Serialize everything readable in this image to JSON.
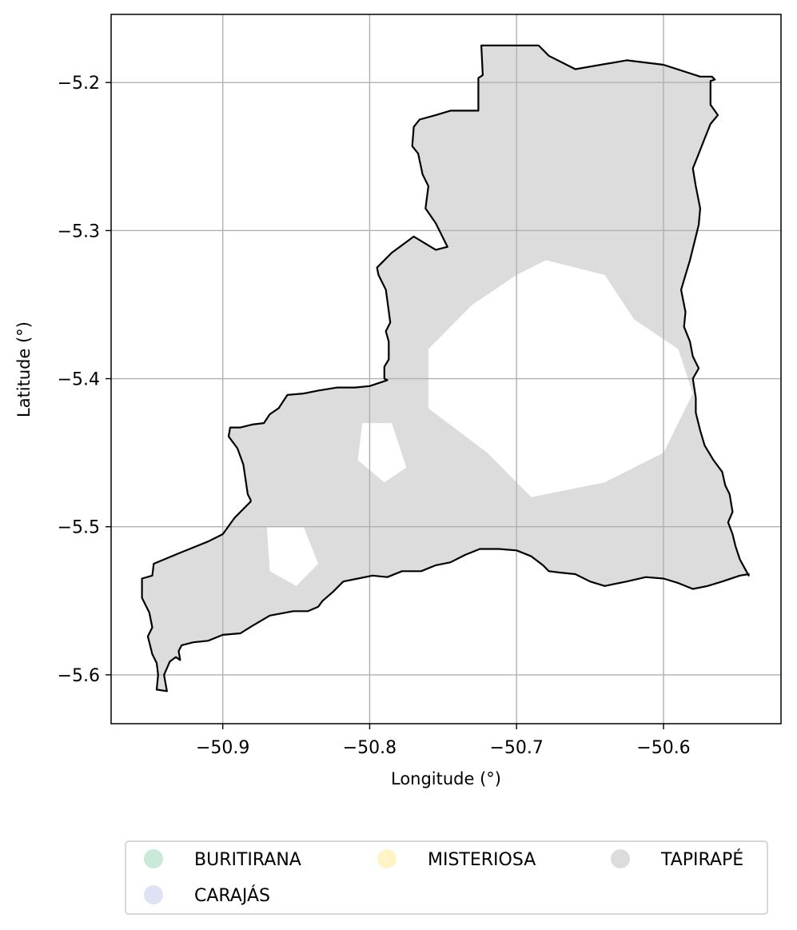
{
  "chart_data": {
    "type": "map",
    "xlabel": "Longitude (°)",
    "ylabel": "Latitude (°)",
    "xlim": [
      -50.976,
      -50.52
    ],
    "ylim": [
      -5.633,
      -5.154
    ],
    "xticks": [
      {
        "value": -50.9,
        "label": "−50.9"
      },
      {
        "value": -50.8,
        "label": "−50.8"
      },
      {
        "value": -50.7,
        "label": "−50.7"
      },
      {
        "value": -50.6,
        "label": "−50.6"
      }
    ],
    "yticks": [
      {
        "value": -5.2,
        "label": "−5.2"
      },
      {
        "value": -5.3,
        "label": "−5.3"
      },
      {
        "value": -5.4,
        "label": "−5.4"
      },
      {
        "value": -5.5,
        "label": "−5.5"
      },
      {
        "value": -5.6,
        "label": "−5.6"
      }
    ],
    "grid": true,
    "legend_placement": "bottom-center",
    "legend": [
      {
        "label": "BURITIRANA",
        "color": "#c9ead8"
      },
      {
        "label": "MISTERIOSA",
        "color": "#fff4c8"
      },
      {
        "label": "TAPIRAPÉ",
        "color": "#dcdcdc"
      },
      {
        "label": "CARAJÁS",
        "color": "#dde3f2"
      }
    ],
    "boundary": {
      "color": "#000000",
      "points": [
        [
          -50.945,
          -5.61
        ],
        [
          -50.938,
          -5.611
        ],
        [
          -50.94,
          -5.6
        ],
        [
          -50.936,
          -5.591
        ],
        [
          -50.932,
          -5.588
        ],
        [
          -50.929,
          -5.59
        ],
        [
          -50.93,
          -5.584
        ],
        [
          -50.928,
          -5.58
        ],
        [
          -50.92,
          -5.578
        ],
        [
          -50.91,
          -5.577
        ],
        [
          -50.9,
          -5.573
        ],
        [
          -50.888,
          -5.572
        ],
        [
          -50.88,
          -5.567
        ],
        [
          -50.868,
          -5.56
        ],
        [
          -50.852,
          -5.557
        ],
        [
          -50.842,
          -5.557
        ],
        [
          -50.835,
          -5.554
        ],
        [
          -50.832,
          -5.55
        ],
        [
          -50.825,
          -5.544
        ],
        [
          -50.818,
          -5.537
        ],
        [
          -50.808,
          -5.535
        ],
        [
          -50.798,
          -5.533
        ],
        [
          -50.788,
          -5.534
        ],
        [
          -50.778,
          -5.53
        ],
        [
          -50.765,
          -5.53
        ],
        [
          -50.755,
          -5.526
        ],
        [
          -50.745,
          -5.524
        ],
        [
          -50.735,
          -5.519
        ],
        [
          -50.725,
          -5.515
        ],
        [
          -50.712,
          -5.515
        ],
        [
          -50.7,
          -5.516
        ],
        [
          -50.69,
          -5.52
        ],
        [
          -50.682,
          -5.526
        ],
        [
          -50.678,
          -5.53
        ],
        [
          -50.67,
          -5.531
        ],
        [
          -50.66,
          -5.532
        ],
        [
          -50.65,
          -5.537
        ],
        [
          -50.64,
          -5.54
        ],
        [
          -50.625,
          -5.537
        ],
        [
          -50.612,
          -5.534
        ],
        [
          -50.6,
          -5.535
        ],
        [
          -50.59,
          -5.538
        ],
        [
          -50.58,
          -5.542
        ],
        [
          -50.57,
          -5.54
        ],
        [
          -50.56,
          -5.537
        ],
        [
          -50.548,
          -5.533
        ],
        [
          -50.542,
          -5.532
        ],
        [
          -50.542,
          -5.533
        ],
        [
          -50.548,
          -5.522
        ],
        [
          -50.551,
          -5.513
        ],
        [
          -50.553,
          -5.505
        ],
        [
          -50.556,
          -5.497
        ],
        [
          -50.553,
          -5.49
        ],
        [
          -50.555,
          -5.478
        ],
        [
          -50.558,
          -5.472
        ],
        [
          -50.56,
          -5.463
        ],
        [
          -50.566,
          -5.455
        ],
        [
          -50.572,
          -5.445
        ],
        [
          -50.575,
          -5.435
        ],
        [
          -50.578,
          -5.423
        ],
        [
          -50.578,
          -5.413
        ],
        [
          -50.58,
          -5.4
        ],
        [
          -50.576,
          -5.393
        ],
        [
          -50.58,
          -5.385
        ],
        [
          -50.582,
          -5.375
        ],
        [
          -50.586,
          -5.365
        ],
        [
          -50.585,
          -5.355
        ],
        [
          -50.588,
          -5.34
        ],
        [
          -50.585,
          -5.33
        ],
        [
          -50.582,
          -5.32
        ],
        [
          -50.579,
          -5.308
        ],
        [
          -50.576,
          -5.296
        ],
        [
          -50.575,
          -5.285
        ],
        [
          -50.578,
          -5.27
        ],
        [
          -50.58,
          -5.258
        ],
        [
          -50.576,
          -5.248
        ],
        [
          -50.572,
          -5.238
        ],
        [
          -50.568,
          -5.228
        ],
        [
          -50.563,
          -5.222
        ],
        [
          -50.568,
          -5.215
        ],
        [
          -50.568,
          -5.205
        ],
        [
          -50.568,
          -5.199
        ],
        [
          -50.565,
          -5.198
        ],
        [
          -50.567,
          -5.196
        ],
        [
          -50.575,
          -5.196
        ],
        [
          -50.6,
          -5.188
        ],
        [
          -50.625,
          -5.185
        ],
        [
          -50.66,
          -5.191
        ],
        [
          -50.678,
          -5.182
        ],
        [
          -50.685,
          -5.175
        ],
        [
          -50.72,
          -5.175
        ],
        [
          -50.724,
          -5.175
        ],
        [
          -50.723,
          -5.195
        ],
        [
          -50.726,
          -5.197
        ],
        [
          -50.726,
          -5.219
        ],
        [
          -50.745,
          -5.219
        ],
        [
          -50.755,
          -5.222
        ],
        [
          -50.766,
          -5.225
        ],
        [
          -50.77,
          -5.23
        ],
        [
          -50.771,
          -5.243
        ],
        [
          -50.767,
          -5.248
        ],
        [
          -50.764,
          -5.262
        ],
        [
          -50.76,
          -5.27
        ],
        [
          -50.762,
          -5.285
        ],
        [
          -50.755,
          -5.295
        ],
        [
          -50.75,
          -5.305
        ],
        [
          -50.747,
          -5.311
        ],
        [
          -50.755,
          -5.313
        ],
        [
          -50.77,
          -5.304
        ],
        [
          -50.785,
          -5.315
        ],
        [
          -50.795,
          -5.325
        ],
        [
          -50.794,
          -5.33
        ],
        [
          -50.789,
          -5.34
        ],
        [
          -50.786,
          -5.362
        ],
        [
          -50.789,
          -5.368
        ],
        [
          -50.787,
          -5.375
        ],
        [
          -50.787,
          -5.387
        ],
        [
          -50.79,
          -5.392
        ],
        [
          -50.79,
          -5.4
        ],
        [
          -50.788,
          -5.401
        ],
        [
          -50.8,
          -5.405
        ],
        [
          -50.81,
          -5.406
        ],
        [
          -50.822,
          -5.406
        ],
        [
          -50.835,
          -5.408
        ],
        [
          -50.845,
          -5.41
        ],
        [
          -50.856,
          -5.411
        ],
        [
          -50.862,
          -5.42
        ],
        [
          -50.868,
          -5.424
        ],
        [
          -50.872,
          -5.43
        ],
        [
          -50.88,
          -5.431
        ],
        [
          -50.888,
          -5.433
        ],
        [
          -50.895,
          -5.433
        ],
        [
          -50.896,
          -5.439
        ],
        [
          -50.89,
          -5.447
        ],
        [
          -50.886,
          -5.458
        ],
        [
          -50.883,
          -5.478
        ],
        [
          -50.881,
          -5.482
        ],
        [
          -50.881,
          -5.483
        ],
        [
          -50.892,
          -5.494
        ],
        [
          -50.9,
          -5.505
        ],
        [
          -50.91,
          -5.51
        ],
        [
          -50.93,
          -5.518
        ],
        [
          -50.947,
          -5.525
        ],
        [
          -50.948,
          -5.533
        ],
        [
          -50.955,
          -5.535
        ],
        [
          -50.955,
          -5.548
        ],
        [
          -50.95,
          -5.558
        ],
        [
          -50.948,
          -5.568
        ],
        [
          -50.951,
          -5.574
        ],
        [
          -50.948,
          -5.586
        ],
        [
          -50.945,
          -5.592
        ],
        [
          -50.944,
          -5.6
        ],
        [
          -50.945,
          -5.61
        ]
      ]
    },
    "holes": [
      [
        [
          -50.7,
          -5.33
        ],
        [
          -50.68,
          -5.32
        ],
        [
          -50.64,
          -5.33
        ],
        [
          -50.62,
          -5.36
        ],
        [
          -50.59,
          -5.38
        ],
        [
          -50.58,
          -5.41
        ],
        [
          -50.6,
          -5.45
        ],
        [
          -50.64,
          -5.47
        ],
        [
          -50.69,
          -5.48
        ],
        [
          -50.72,
          -5.45
        ],
        [
          -50.76,
          -5.42
        ],
        [
          -50.76,
          -5.38
        ],
        [
          -50.73,
          -5.35
        ]
      ],
      [
        [
          -50.87,
          -5.5
        ],
        [
          -50.845,
          -5.5
        ],
        [
          -50.835,
          -5.525
        ],
        [
          -50.85,
          -5.54
        ],
        [
          -50.868,
          -5.53
        ]
      ],
      [
        [
          -50.805,
          -5.43
        ],
        [
          -50.785,
          -5.43
        ],
        [
          -50.775,
          -5.46
        ],
        [
          -50.79,
          -5.47
        ],
        [
          -50.808,
          -5.455
        ]
      ]
    ]
  }
}
